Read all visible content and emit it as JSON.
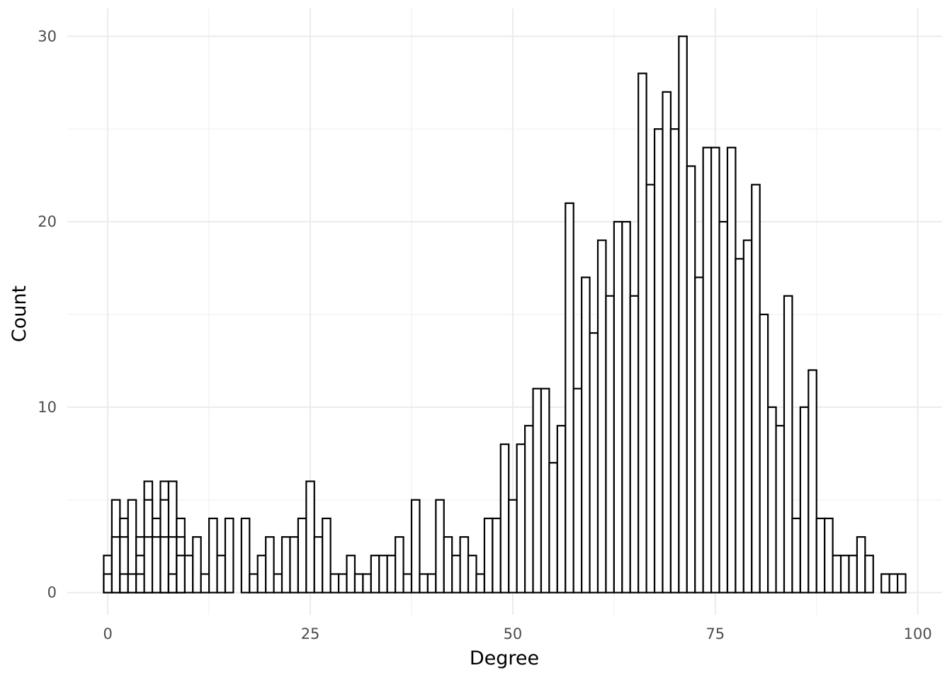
{
  "chart_data": {
    "type": "bar",
    "subtype": "histogram",
    "xlabel": "Degree",
    "ylabel": "Count",
    "xlim": [
      -5,
      103
    ],
    "ylim": [
      -1.2,
      31.5
    ],
    "x_ticks": [
      0,
      25,
      50,
      75,
      100
    ],
    "x_tick_labels": [
      "0",
      "25",
      "50",
      "75",
      "100"
    ],
    "y_ticks": [
      0,
      10,
      20,
      30
    ],
    "y_tick_labels": [
      "0",
      "10",
      "20",
      "30"
    ],
    "grid": true,
    "legend": "none",
    "fill_color": "#ffffff",
    "outline_color": "#000000",
    "bin_width": 1,
    "layers": [
      {
        "name": "",
        "bars": [
          {
            "x": 0,
            "count": 2
          },
          {
            "x": 1,
            "count": 5
          },
          {
            "x": 2,
            "count": 4
          },
          {
            "x": 3,
            "count": 5
          },
          {
            "x": 4,
            "count": 3
          },
          {
            "x": 5,
            "count": 6
          },
          {
            "x": 6,
            "count": 4
          },
          {
            "x": 7,
            "count": 6
          },
          {
            "x": 8,
            "count": 6
          },
          {
            "x": 9,
            "count": 4
          },
          {
            "x": 10,
            "count": 2
          },
          {
            "x": 11,
            "count": 3
          },
          {
            "x": 12,
            "count": 1
          },
          {
            "x": 13,
            "count": 4
          },
          {
            "x": 14,
            "count": 2
          },
          {
            "x": 15,
            "count": 4
          },
          {
            "x": 17,
            "count": 4
          },
          {
            "x": 18,
            "count": 1
          },
          {
            "x": 19,
            "count": 2
          },
          {
            "x": 20,
            "count": 3
          },
          {
            "x": 21,
            "count": 1
          },
          {
            "x": 22,
            "count": 3
          },
          {
            "x": 23,
            "count": 3
          },
          {
            "x": 24,
            "count": 4
          },
          {
            "x": 25,
            "count": 6
          },
          {
            "x": 26,
            "count": 3
          },
          {
            "x": 27,
            "count": 4
          },
          {
            "x": 28,
            "count": 1
          },
          {
            "x": 29,
            "count": 1
          },
          {
            "x": 30,
            "count": 2
          },
          {
            "x": 31,
            "count": 1
          },
          {
            "x": 32,
            "count": 1
          },
          {
            "x": 33,
            "count": 2
          },
          {
            "x": 34,
            "count": 2
          },
          {
            "x": 35,
            "count": 2
          },
          {
            "x": 36,
            "count": 3
          },
          {
            "x": 37,
            "count": 1
          },
          {
            "x": 38,
            "count": 5
          },
          {
            "x": 39,
            "count": 1
          },
          {
            "x": 40,
            "count": 1
          },
          {
            "x": 41,
            "count": 5
          },
          {
            "x": 42,
            "count": 3
          },
          {
            "x": 43,
            "count": 2
          },
          {
            "x": 44,
            "count": 3
          },
          {
            "x": 45,
            "count": 2
          },
          {
            "x": 46,
            "count": 1
          },
          {
            "x": 47,
            "count": 4
          },
          {
            "x": 48,
            "count": 4
          },
          {
            "x": 49,
            "count": 8
          },
          {
            "x": 50,
            "count": 5
          },
          {
            "x": 51,
            "count": 8
          },
          {
            "x": 52,
            "count": 9
          },
          {
            "x": 53,
            "count": 11
          },
          {
            "x": 54,
            "count": 11
          },
          {
            "x": 55,
            "count": 7
          },
          {
            "x": 56,
            "count": 9
          },
          {
            "x": 57,
            "count": 21
          },
          {
            "x": 58,
            "count": 11
          },
          {
            "x": 59,
            "count": 17
          },
          {
            "x": 60,
            "count": 14
          },
          {
            "x": 61,
            "count": 19
          },
          {
            "x": 62,
            "count": 16
          },
          {
            "x": 63,
            "count": 20
          },
          {
            "x": 64,
            "count": 20
          },
          {
            "x": 65,
            "count": 16
          },
          {
            "x": 66,
            "count": 28
          },
          {
            "x": 67,
            "count": 22
          },
          {
            "x": 68,
            "count": 25
          },
          {
            "x": 69,
            "count": 27
          },
          {
            "x": 70,
            "count": 25
          },
          {
            "x": 71,
            "count": 30
          },
          {
            "x": 72,
            "count": 23
          },
          {
            "x": 73,
            "count": 17
          },
          {
            "x": 74,
            "count": 24
          },
          {
            "x": 75,
            "count": 24
          },
          {
            "x": 76,
            "count": 20
          },
          {
            "x": 77,
            "count": 24
          },
          {
            "x": 78,
            "count": 18
          },
          {
            "x": 79,
            "count": 19
          },
          {
            "x": 80,
            "count": 22
          },
          {
            "x": 81,
            "count": 15
          },
          {
            "x": 82,
            "count": 10
          },
          {
            "x": 83,
            "count": 9
          },
          {
            "x": 84,
            "count": 16
          },
          {
            "x": 85,
            "count": 4
          },
          {
            "x": 86,
            "count": 10
          },
          {
            "x": 87,
            "count": 12
          },
          {
            "x": 88,
            "count": 4
          },
          {
            "x": 89,
            "count": 4
          },
          {
            "x": 90,
            "count": 2
          },
          {
            "x": 91,
            "count": 2
          },
          {
            "x": 92,
            "count": 2
          },
          {
            "x": 93,
            "count": 3
          },
          {
            "x": 94,
            "count": 2
          },
          {
            "x": 96,
            "count": 1
          },
          {
            "x": 97,
            "count": 1
          },
          {
            "x": 98,
            "count": 1
          }
        ]
      },
      {
        "name": "",
        "bars": [
          {
            "x": 0,
            "count": 1
          },
          {
            "x": 1,
            "count": 3
          },
          {
            "x": 2,
            "count": 3
          },
          {
            "x": 2,
            "count": 1
          },
          {
            "x": 3,
            "count": 1
          },
          {
            "x": 4,
            "count": 2
          },
          {
            "x": 4,
            "count": 1
          },
          {
            "x": 5,
            "count": 5
          },
          {
            "x": 5,
            "count": 3
          },
          {
            "x": 6,
            "count": 3
          },
          {
            "x": 7,
            "count": 5
          },
          {
            "x": 7,
            "count": 3
          },
          {
            "x": 8,
            "count": 3
          },
          {
            "x": 8,
            "count": 1
          },
          {
            "x": 9,
            "count": 3
          },
          {
            "x": 9,
            "count": 2
          }
        ]
      }
    ]
  }
}
